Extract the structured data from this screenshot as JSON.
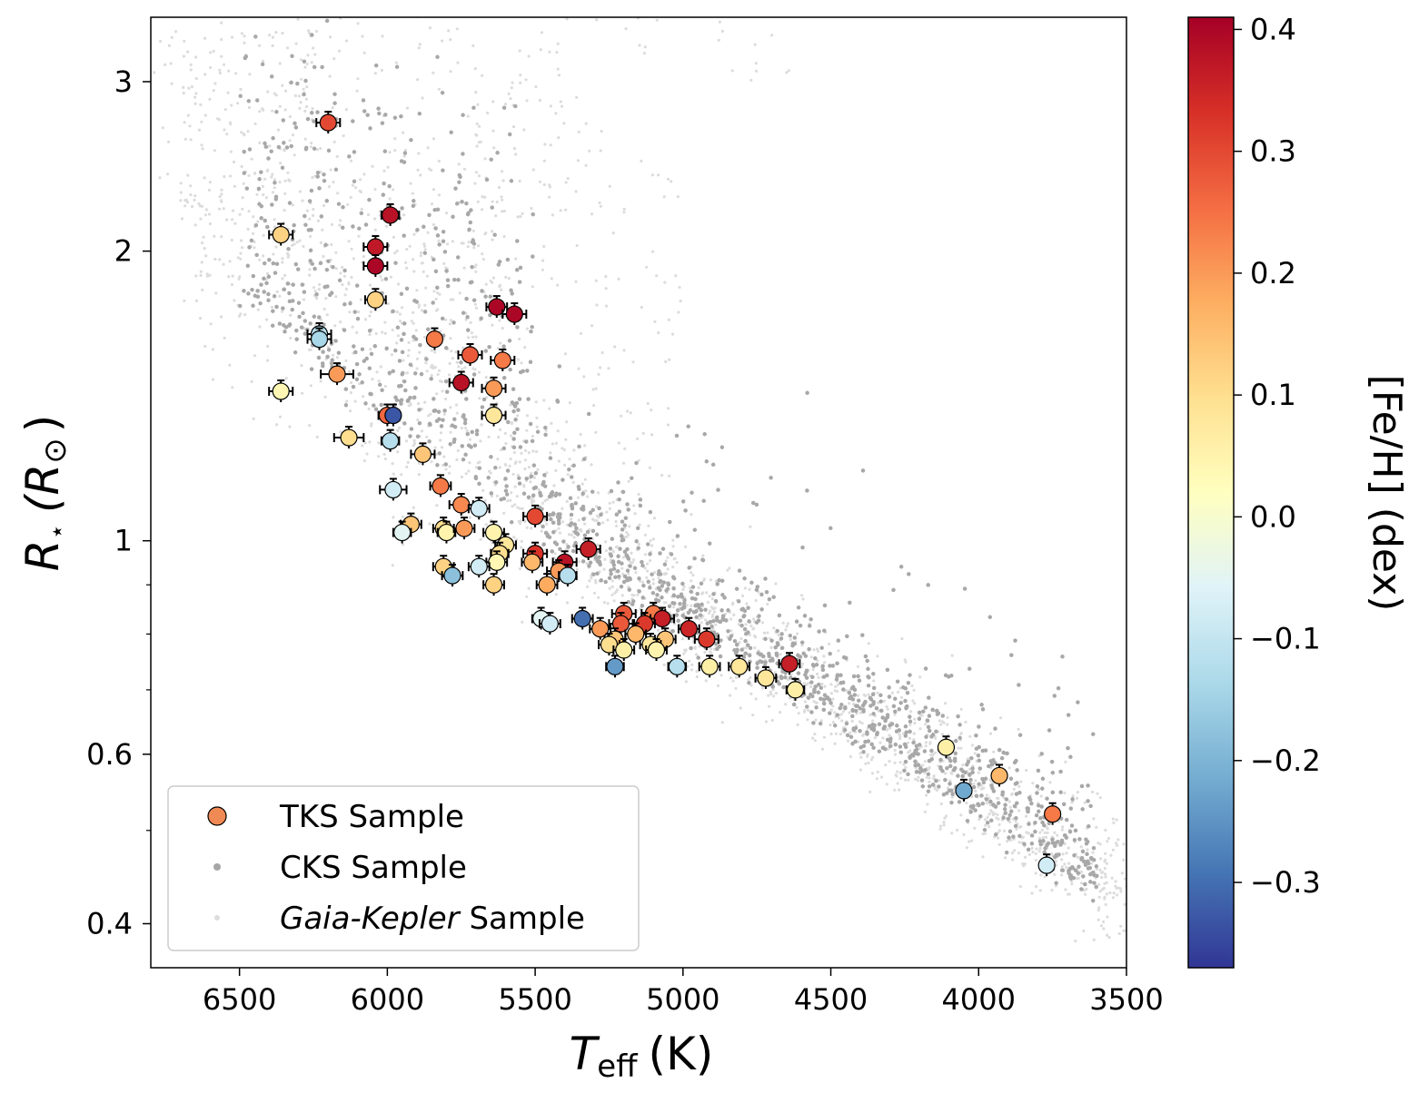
{
  "chart_data": {
    "type": "scatter",
    "x_axis": {
      "label_main": "T",
      "label_sub": "eff",
      "label_unit": "(K)",
      "range": [
        6800,
        3500
      ],
      "reversed": true,
      "ticks": [
        6500,
        6000,
        5500,
        5000,
        4500,
        4000,
        3500
      ],
      "tick_labels": [
        "6500",
        "6000",
        "5500",
        "5000",
        "4500",
        "4000",
        "3500"
      ]
    },
    "y_axis": {
      "label_main": "R",
      "label_sub": "⋆",
      "label_unit": "(R",
      "label_sun": "⊙",
      "label_close": ")",
      "scale": "log",
      "range": [
        0.36,
        3.5
      ],
      "ticks": [
        3,
        2,
        1,
        0.6,
        0.4
      ],
      "tick_labels": [
        "3",
        "2",
        "1",
        "0.6",
        "0.4"
      ],
      "minor_ticks": [
        0.5,
        0.7,
        0.8,
        0.9
      ]
    },
    "colorbar": {
      "label": "[Fe/H] (dex)",
      "range": [
        -0.37,
        0.41
      ],
      "ticks": [
        0.4,
        0.3,
        0.2,
        0.1,
        0.0,
        -0.1,
        -0.2,
        -0.3
      ],
      "tick_labels": [
        "0.4",
        "0.3",
        "0.2",
        "0.1",
        "0.0",
        "−0.1",
        "−0.2",
        "−0.3"
      ],
      "colormap": "RdYlBu_r"
    },
    "legend": {
      "placement": "lower-left",
      "entries": [
        {
          "marker": "circle-filled",
          "label": "TKS Sample"
        },
        {
          "marker": "dot-gray",
          "label": "CKS Sample"
        },
        {
          "marker": "dot-lightgray",
          "label_italic": "Gaia-Kepler",
          "label_rest": " Sample"
        }
      ]
    },
    "series": [
      {
        "name": "TKS Sample",
        "columns": [
          "teff",
          "radius",
          "feh",
          "teff_err"
        ],
        "points": [
          [
            6200,
            2.72,
            0.3,
            40
          ],
          [
            6360,
            2.08,
            0.12,
            40
          ],
          [
            5990,
            2.18,
            0.38,
            30
          ],
          [
            6040,
            2.02,
            0.37,
            40
          ],
          [
            6040,
            1.93,
            0.4,
            40
          ],
          [
            6040,
            1.78,
            0.12,
            35
          ],
          [
            5630,
            1.75,
            0.4,
            35
          ],
          [
            5570,
            1.72,
            0.4,
            40
          ],
          [
            6230,
            1.64,
            -0.12,
            40
          ],
          [
            6230,
            1.62,
            -0.14,
            40
          ],
          [
            5840,
            1.62,
            0.24,
            0
          ],
          [
            5720,
            1.56,
            0.28,
            40
          ],
          [
            5610,
            1.54,
            0.24,
            40
          ],
          [
            6170,
            1.49,
            0.2,
            55
          ],
          [
            5750,
            1.46,
            0.38,
            40
          ],
          [
            5640,
            1.44,
            0.2,
            40
          ],
          [
            6360,
            1.43,
            0.04,
            40
          ],
          [
            6000,
            1.35,
            0.26,
            30
          ],
          [
            5980,
            1.35,
            -0.33,
            0
          ],
          [
            5640,
            1.35,
            0.08,
            40
          ],
          [
            6130,
            1.28,
            0.1,
            50
          ],
          [
            5990,
            1.27,
            -0.12,
            30
          ],
          [
            5880,
            1.23,
            0.14,
            40
          ],
          [
            5820,
            1.14,
            0.24,
            35
          ],
          [
            5980,
            1.13,
            -0.08,
            45
          ],
          [
            5750,
            1.09,
            0.22,
            40
          ],
          [
            5690,
            1.08,
            -0.08,
            35
          ],
          [
            5500,
            1.06,
            0.3,
            40
          ],
          [
            5920,
            1.04,
            0.14,
            35
          ],
          [
            5950,
            1.02,
            -0.05,
            30
          ],
          [
            5810,
            1.03,
            0.1,
            35
          ],
          [
            5800,
            1.02,
            0.05,
            30
          ],
          [
            5740,
            1.03,
            0.2,
            35
          ],
          [
            5640,
            1.02,
            0.05,
            35
          ],
          [
            5600,
            0.99,
            0.08,
            35
          ],
          [
            5500,
            0.97,
            0.33,
            40
          ],
          [
            5620,
            0.97,
            0.1,
            30
          ],
          [
            5320,
            0.98,
            0.36,
            40
          ],
          [
            5400,
            0.95,
            0.38,
            40
          ],
          [
            5510,
            0.95,
            0.16,
            35
          ],
          [
            5630,
            0.95,
            0.04,
            35
          ],
          [
            5690,
            0.94,
            -0.08,
            35
          ],
          [
            5810,
            0.94,
            0.12,
            35
          ],
          [
            5420,
            0.93,
            0.2,
            40
          ],
          [
            5390,
            0.92,
            -0.12,
            30
          ],
          [
            5780,
            0.92,
            -0.18,
            35
          ],
          [
            5640,
            0.9,
            0.12,
            35
          ],
          [
            5460,
            0.9,
            0.18,
            35
          ],
          [
            5340,
            0.83,
            -0.3,
            35
          ],
          [
            5480,
            0.83,
            -0.05,
            30
          ],
          [
            5450,
            0.82,
            -0.08,
            35
          ],
          [
            5200,
            0.84,
            0.28,
            40
          ],
          [
            5100,
            0.84,
            0.24,
            40
          ],
          [
            5070,
            0.83,
            0.36,
            40
          ],
          [
            5210,
            0.82,
            0.28,
            40
          ],
          [
            5130,
            0.82,
            0.32,
            35
          ],
          [
            4980,
            0.81,
            0.35,
            35
          ],
          [
            5280,
            0.81,
            0.2,
            35
          ],
          [
            5160,
            0.8,
            0.16,
            35
          ],
          [
            5230,
            0.79,
            0.14,
            35
          ],
          [
            5250,
            0.78,
            0.1,
            35
          ],
          [
            5060,
            0.79,
            0.14,
            35
          ],
          [
            5110,
            0.78,
            0.08,
            35
          ],
          [
            4920,
            0.79,
            0.32,
            40
          ],
          [
            5200,
            0.77,
            0.06,
            35
          ],
          [
            5090,
            0.77,
            0.05,
            35
          ],
          [
            5230,
            0.74,
            -0.24,
            30
          ],
          [
            5020,
            0.74,
            -0.12,
            30
          ],
          [
            4910,
            0.74,
            0.06,
            35
          ],
          [
            4810,
            0.74,
            0.08,
            35
          ],
          [
            4720,
            0.72,
            0.08,
            35
          ],
          [
            4640,
            0.745,
            0.36,
            35
          ],
          [
            4620,
            0.7,
            0.06,
            30
          ],
          [
            4110,
            0.61,
            0.06,
            20
          ],
          [
            3930,
            0.57,
            0.16,
            20
          ],
          [
            4050,
            0.55,
            -0.22,
            20
          ],
          [
            3750,
            0.52,
            0.24,
            15
          ],
          [
            3770,
            0.46,
            -0.08,
            10
          ]
        ]
      }
    ]
  }
}
